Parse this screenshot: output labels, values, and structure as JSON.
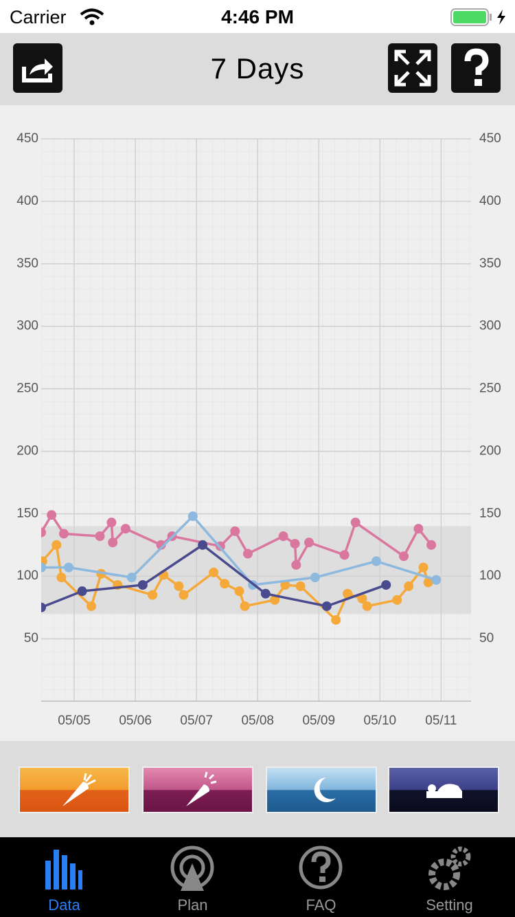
{
  "status_bar": {
    "carrier": "Carrier",
    "time": "4:46 PM"
  },
  "header": {
    "title": "7 Days"
  },
  "chart_data": {
    "type": "line",
    "xlim": [
      4.46,
      11.49
    ],
    "xticks": [
      {
        "value": 5,
        "label": "05/05"
      },
      {
        "value": 6,
        "label": "05/06"
      },
      {
        "value": 7,
        "label": "05/07"
      },
      {
        "value": 8,
        "label": "05/08"
      },
      {
        "value": 9,
        "label": "05/09"
      },
      {
        "value": 10,
        "label": "05/10"
      },
      {
        "value": 11,
        "label": "05/11"
      }
    ],
    "ylim": [
      0,
      450
    ],
    "yticks": [
      50,
      100,
      150,
      200,
      250,
      300,
      350,
      400,
      450
    ],
    "grid": true,
    "target_range": [
      70,
      140
    ],
    "series": [
      {
        "color": "#d9779f",
        "x": [
          4.46,
          4.63,
          4.83,
          5.42,
          5.61,
          5.63,
          5.84,
          6.42,
          6.6,
          7.39,
          7.63,
          7.84,
          8.42,
          8.61,
          8.63,
          8.84,
          9.42,
          9.6,
          10.39,
          10.63,
          10.84
        ],
        "values": [
          135,
          149,
          134,
          132,
          143,
          127,
          138,
          125,
          132,
          124,
          136,
          118,
          132,
          126,
          109,
          127,
          117,
          143,
          116,
          138,
          125
        ]
      },
      {
        "color": "#f4a93a",
        "x": [
          4.48,
          4.71,
          4.79,
          5.28,
          5.44,
          5.71,
          6.28,
          6.46,
          6.71,
          6.79,
          7.28,
          7.46,
          7.7,
          7.79,
          8.28,
          8.45,
          8.7,
          9.28,
          9.47,
          9.71,
          9.79,
          10.28,
          10.47,
          10.71,
          10.79
        ],
        "values": [
          112,
          125,
          99,
          76,
          102,
          93,
          85,
          101,
          92,
          85,
          103,
          94,
          88,
          76,
          81,
          93,
          92,
          65,
          86,
          82,
          76,
          81,
          92,
          107,
          95
        ]
      },
      {
        "color": "#8cb9dd",
        "x": [
          4.46,
          4.91,
          5.94,
          6.94,
          7.92,
          8.94,
          9.94,
          10.92
        ],
        "values": [
          107,
          107,
          99,
          148,
          93,
          99,
          112,
          97
        ]
      },
      {
        "color": "#4a4b8e",
        "x": [
          4.46,
          5.13,
          6.12,
          7.1,
          8.13,
          9.13,
          10.1
        ],
        "values": [
          75,
          88,
          93,
          125,
          86,
          76,
          93
        ]
      }
    ]
  },
  "tab_bar": {
    "tabs": [
      "Data",
      "Plan",
      "FAQ",
      "Setting"
    ]
  }
}
